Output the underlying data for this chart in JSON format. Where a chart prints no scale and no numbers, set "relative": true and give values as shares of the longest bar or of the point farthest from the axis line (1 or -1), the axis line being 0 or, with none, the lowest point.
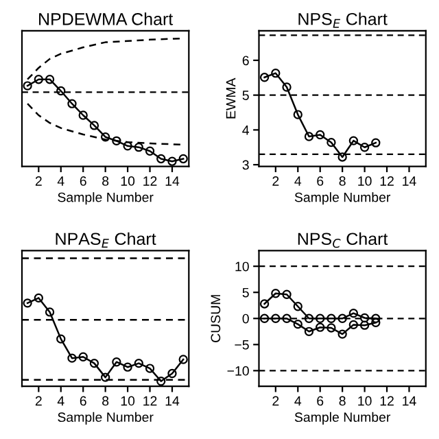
{
  "chart_data": [
    {
      "type": "line",
      "title": "NPDEWMA Chart",
      "xlabel": "Sample Number",
      "relative": true,
      "x": [
        1,
        2,
        3,
        4,
        5,
        6,
        7,
        8,
        9,
        10,
        11,
        12,
        13,
        14,
        15
      ],
      "xlim": [
        0.5,
        15.5
      ],
      "xticks": [
        2,
        4,
        6,
        8,
        10,
        12,
        14
      ],
      "tick_labels": "x",
      "marker": "circle",
      "line_style": "solid",
      "series": [
        {
          "color": "#000000",
          "values": [
            0.63,
            0.68,
            0.68,
            0.59,
            0.49,
            0.4,
            0.32,
            0.23,
            0.2,
            0.16,
            0.15,
            0.12,
            0.06,
            0.04,
            0.06
          ]
        },
        {
          "color": "#000000",
          "x": [
            1,
            2,
            3,
            4,
            6,
            8,
            10,
            12,
            15
          ],
          "values": [
            0.68,
            0.77,
            0.84,
            0.88,
            0.93,
            0.97,
            0.98,
            0.99,
            1
          ],
          "marker": "none",
          "line_style": "dashed"
        },
        {
          "color": "#000000",
          "x": [
            1,
            2,
            3,
            4,
            6,
            8,
            10,
            12,
            15
          ],
          "values": [
            0.49,
            0.4,
            0.34,
            0.3,
            0.25,
            0.21,
            0.19,
            0.18,
            0.17
          ],
          "marker": "none",
          "line_style": "dashed"
        }
      ],
      "ref_lines": [
        {
          "axis": "y",
          "value": 0.58,
          "color": "#000000",
          "line_style": "dashed"
        }
      ]
    },
    {
      "type": "line",
      "title": "NPS$_{E}$ Chart",
      "xlabel": "Sample Number",
      "ylabel": "EWMA",
      "x": [
        1,
        2,
        3,
        4,
        5,
        6,
        7,
        8,
        9,
        10,
        11
      ],
      "xlim": [
        0.5,
        15.5
      ],
      "xticks": [
        2,
        4,
        6,
        8,
        10,
        12,
        14
      ],
      "ylim": [
        2.95,
        6.85
      ],
      "yticks": [
        3,
        4,
        5,
        6
      ],
      "marker": "circle",
      "line_style": "solid",
      "series": [
        {
          "color": "#000000",
          "values": [
            5.51,
            5.63,
            5.23,
            4.44,
            3.81,
            3.86,
            3.64,
            3.22,
            3.69,
            3.5,
            3.63
          ]
        }
      ],
      "ref_lines": [
        {
          "axis": "y",
          "value": 6.72,
          "color": "#000000",
          "line_style": "dashed"
        },
        {
          "axis": "y",
          "value": 5.0,
          "color": "#000000",
          "line_style": "dashed"
        },
        {
          "axis": "y",
          "value": 3.3,
          "color": "#000000",
          "line_style": "dashed"
        }
      ]
    },
    {
      "type": "line",
      "title": "NPAS$_{E}$ Chart",
      "xlabel": "Sample Number",
      "relative": true,
      "x": [
        1,
        2,
        3,
        4,
        5,
        6,
        7,
        8,
        9,
        10,
        11,
        12,
        13,
        14,
        15
      ],
      "xlim": [
        0.5,
        15.5
      ],
      "xticks": [
        2,
        4,
        6,
        8,
        10,
        12,
        14
      ],
      "tick_labels": "x",
      "marker": "circle",
      "line_style": "solid",
      "series": [
        {
          "color": "#000000",
          "values": [
            0.65,
            0.69,
            0.58,
            0.37,
            0.22,
            0.23,
            0.18,
            0.07,
            0.19,
            0.15,
            0.18,
            0.14,
            0.04,
            0.1,
            0.21
          ]
        },
        {
          "color": "#000000",
          "x": [
            0.5,
            15.5
          ],
          "values": [
            1,
            1
          ],
          "marker": "none",
          "line_style": "dashed"
        },
        {
          "color": "#000000",
          "x": [
            0.5,
            15.5
          ],
          "values": [
            0.52,
            0.52
          ],
          "marker": "none",
          "line_style": "dashed"
        },
        {
          "color": "#000000",
          "x": [
            0.5,
            15.5
          ],
          "values": [
            0.05,
            0.05
          ],
          "marker": "none",
          "line_style": "dashed"
        }
      ]
    },
    {
      "type": "line",
      "title": "NPS$_{C}$ Chart",
      "xlabel": "Sample Number",
      "ylabel": "CUSUM",
      "x": [
        1,
        2,
        3,
        4,
        5,
        6,
        7,
        8,
        9,
        10,
        11
      ],
      "xlim": [
        0.5,
        15.5
      ],
      "xticks": [
        2,
        4,
        6,
        8,
        10,
        12,
        14
      ],
      "ylim": [
        -13,
        13
      ],
      "yticks": [
        {
          "value": -10,
          "label": "−10"
        },
        {
          "value": -5,
          "label": "−5"
        },
        0,
        5,
        10
      ],
      "marker": "circle",
      "line_style": "solid",
      "series": [
        {
          "color": "#000000",
          "values": [
            2.8,
            4.8,
            4.6,
            2.3,
            0,
            0,
            0,
            0,
            1.0,
            0.1,
            0
          ]
        },
        {
          "color": "#000000",
          "values": [
            0,
            0,
            0,
            -1.1,
            -2.5,
            -1.7,
            -1.8,
            -3.0,
            -1.2,
            -1.3,
            -0.8
          ]
        }
      ],
      "ref_lines": [
        {
          "axis": "y",
          "value": 10,
          "color": "#000000",
          "line_style": "dashed"
        },
        {
          "axis": "y",
          "value": 0,
          "color": "#000000",
          "line_style": "dashed"
        },
        {
          "axis": "y",
          "value": -10,
          "color": "#000000",
          "line_style": "dashed"
        }
      ]
    }
  ]
}
